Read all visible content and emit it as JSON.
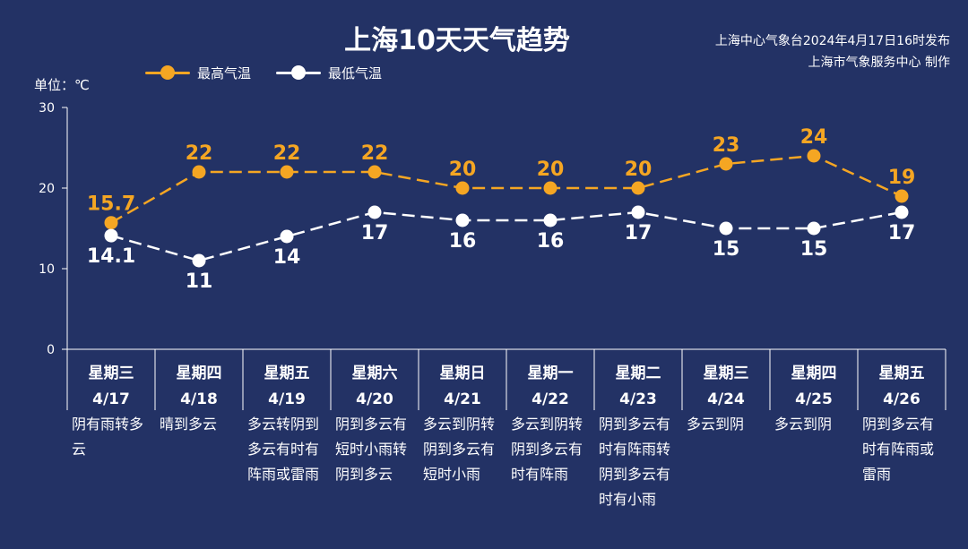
{
  "header": {
    "title": "上海10天天气趋势",
    "source_line1": "上海中心气象台2024年4月17日16时发布",
    "source_line2": "上海市气象服务中心 制作",
    "unit_label": "单位：℃"
  },
  "colors": {
    "background": "#233265",
    "high": "#F5A623",
    "low": "#FFFFFF",
    "axis": "#FFFFFF"
  },
  "chart_data": {
    "type": "line",
    "ylim": [
      0,
      30
    ],
    "yticks": [
      0,
      10,
      20,
      30
    ],
    "legend_position": "top-left",
    "grid": false,
    "days": [
      {
        "weekday": "星期三",
        "date": "4/17",
        "weather": "阴有雨转多云"
      },
      {
        "weekday": "星期四",
        "date": "4/18",
        "weather": "晴到多云"
      },
      {
        "weekday": "星期五",
        "date": "4/19",
        "weather": "多云转阴到多云有时有阵雨或雷雨"
      },
      {
        "weekday": "星期六",
        "date": "4/20",
        "weather": "阴到多云有短时小雨转阴到多云"
      },
      {
        "weekday": "星期日",
        "date": "4/21",
        "weather": "多云到阴转阴到多云有短时小雨"
      },
      {
        "weekday": "星期一",
        "date": "4/22",
        "weather": "多云到阴转阴到多云有时有阵雨"
      },
      {
        "weekday": "星期二",
        "date": "4/23",
        "weather": "阴到多云有时有阵雨转阴到多云有时有小雨"
      },
      {
        "weekday": "星期三",
        "date": "4/24",
        "weather": "多云到阴"
      },
      {
        "weekday": "星期四",
        "date": "4/25",
        "weather": "多云到阴"
      },
      {
        "weekday": "星期五",
        "date": "4/26",
        "weather": "阴到多云有时有阵雨或雷雨"
      }
    ],
    "series": [
      {
        "name": "最高气温",
        "values": [
          15.7,
          22,
          22,
          22,
          20,
          20,
          20,
          23,
          24,
          19
        ],
        "labels": [
          "15.7",
          "22",
          "22",
          "22",
          "20",
          "20",
          "20",
          "23",
          "24",
          "19"
        ]
      },
      {
        "name": "最低气温",
        "values": [
          14.1,
          11,
          14,
          17,
          16,
          16,
          17,
          15,
          15,
          17
        ],
        "labels": [
          "14.1",
          "11",
          "14",
          "17",
          "16",
          "16",
          "17",
          "15",
          "15",
          "17"
        ]
      }
    ]
  }
}
